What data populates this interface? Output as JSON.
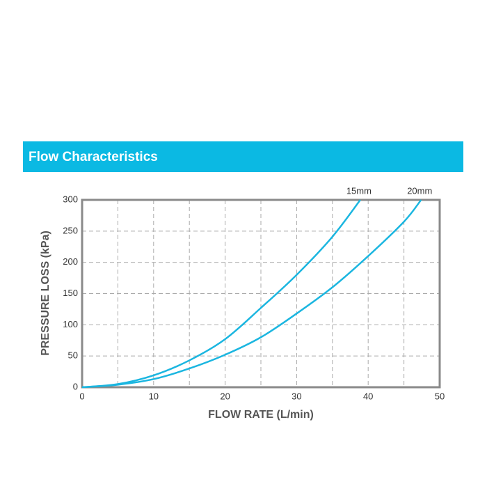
{
  "chart_data": {
    "type": "line",
    "title": "Flow Characteristics",
    "x_label": "FLOW RATE (L/min)",
    "y_label": "PRESSURE LOSS (kPa)",
    "xlim": [
      0,
      50
    ],
    "xticks": [
      0,
      10,
      20,
      30,
      40,
      50
    ],
    "ylim": [
      0,
      300
    ],
    "yticks": [
      0,
      50,
      100,
      150,
      200,
      250,
      300
    ],
    "grid": true,
    "color": "#1bb6e0",
    "banner_color": "#0bb9e3",
    "series": [
      {
        "name": "15mm",
        "color": "#1bb6e0",
        "x": [
          0,
          5,
          10,
          15,
          20,
          25,
          30,
          35,
          38.9
        ],
        "values": [
          0,
          5,
          19,
          43,
          77,
          127,
          180,
          241,
          300
        ]
      },
      {
        "name": "20mm",
        "color": "#1bb6e0",
        "x": [
          0,
          5,
          10,
          15,
          20,
          25,
          30,
          35,
          40,
          45,
          47.4
        ],
        "values": [
          0,
          4,
          13,
          30,
          52,
          80,
          118,
          160,
          210,
          265,
          300
        ]
      }
    ]
  }
}
